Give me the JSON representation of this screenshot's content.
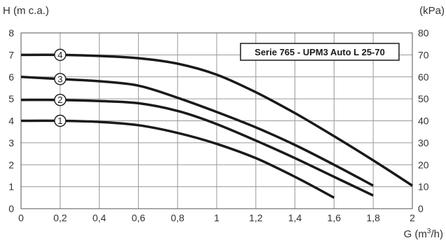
{
  "chart_data": {
    "type": "line",
    "title": "Serie 765 - UPM3 Auto L 25-70",
    "ylabel_left": "H (m c.a.)",
    "ylabel_right": "(kPa)",
    "xlabel": "G (m",
    "xlabel_sup": "3",
    "xlabel_tail": "/h)",
    "xlim": [
      0,
      2
    ],
    "ylim": [
      0,
      8
    ],
    "ylim_right": [
      0,
      80
    ],
    "x_ticks": [
      "0",
      "0,2",
      "0,4",
      "0,6",
      "0,8",
      "1",
      "1,2",
      "1,4",
      "1,6",
      "1,8",
      "2"
    ],
    "y_ticks_left": [
      "0",
      "1",
      "2",
      "3",
      "4",
      "5",
      "6",
      "7",
      "8"
    ],
    "y_ticks_right": [
      "0",
      "10",
      "20",
      "30",
      "40",
      "50",
      "60",
      "70",
      "80"
    ],
    "grid": true,
    "series": [
      {
        "name": "1",
        "points": [
          [
            0,
            4.0
          ],
          [
            0.2,
            4.0
          ],
          [
            0.4,
            3.95
          ],
          [
            0.6,
            3.8
          ],
          [
            0.8,
            3.45
          ],
          [
            1.0,
            2.95
          ],
          [
            1.2,
            2.3
          ],
          [
            1.4,
            1.45
          ],
          [
            1.6,
            0.5
          ]
        ]
      },
      {
        "name": "2",
        "points": [
          [
            0,
            4.95
          ],
          [
            0.2,
            4.95
          ],
          [
            0.4,
            4.9
          ],
          [
            0.6,
            4.8
          ],
          [
            0.8,
            4.45
          ],
          [
            1.0,
            3.85
          ],
          [
            1.2,
            3.1
          ],
          [
            1.4,
            2.3
          ],
          [
            1.6,
            1.45
          ],
          [
            1.8,
            0.6
          ]
        ]
      },
      {
        "name": "3",
        "points": [
          [
            0,
            6.0
          ],
          [
            0.2,
            5.9
          ],
          [
            0.4,
            5.8
          ],
          [
            0.6,
            5.6
          ],
          [
            0.8,
            5.05
          ],
          [
            1.0,
            4.4
          ],
          [
            1.2,
            3.7
          ],
          [
            1.4,
            2.9
          ],
          [
            1.6,
            2.0
          ],
          [
            1.8,
            1.05
          ]
        ]
      },
      {
        "name": "4",
        "points": [
          [
            0,
            7.0
          ],
          [
            0.2,
            7.0
          ],
          [
            0.4,
            6.95
          ],
          [
            0.6,
            6.85
          ],
          [
            0.8,
            6.6
          ],
          [
            1.0,
            6.1
          ],
          [
            1.2,
            5.3
          ],
          [
            1.4,
            4.35
          ],
          [
            1.6,
            3.3
          ],
          [
            1.8,
            2.2
          ],
          [
            2.0,
            1.05
          ]
        ]
      }
    ],
    "markers_x": 0.2
  }
}
